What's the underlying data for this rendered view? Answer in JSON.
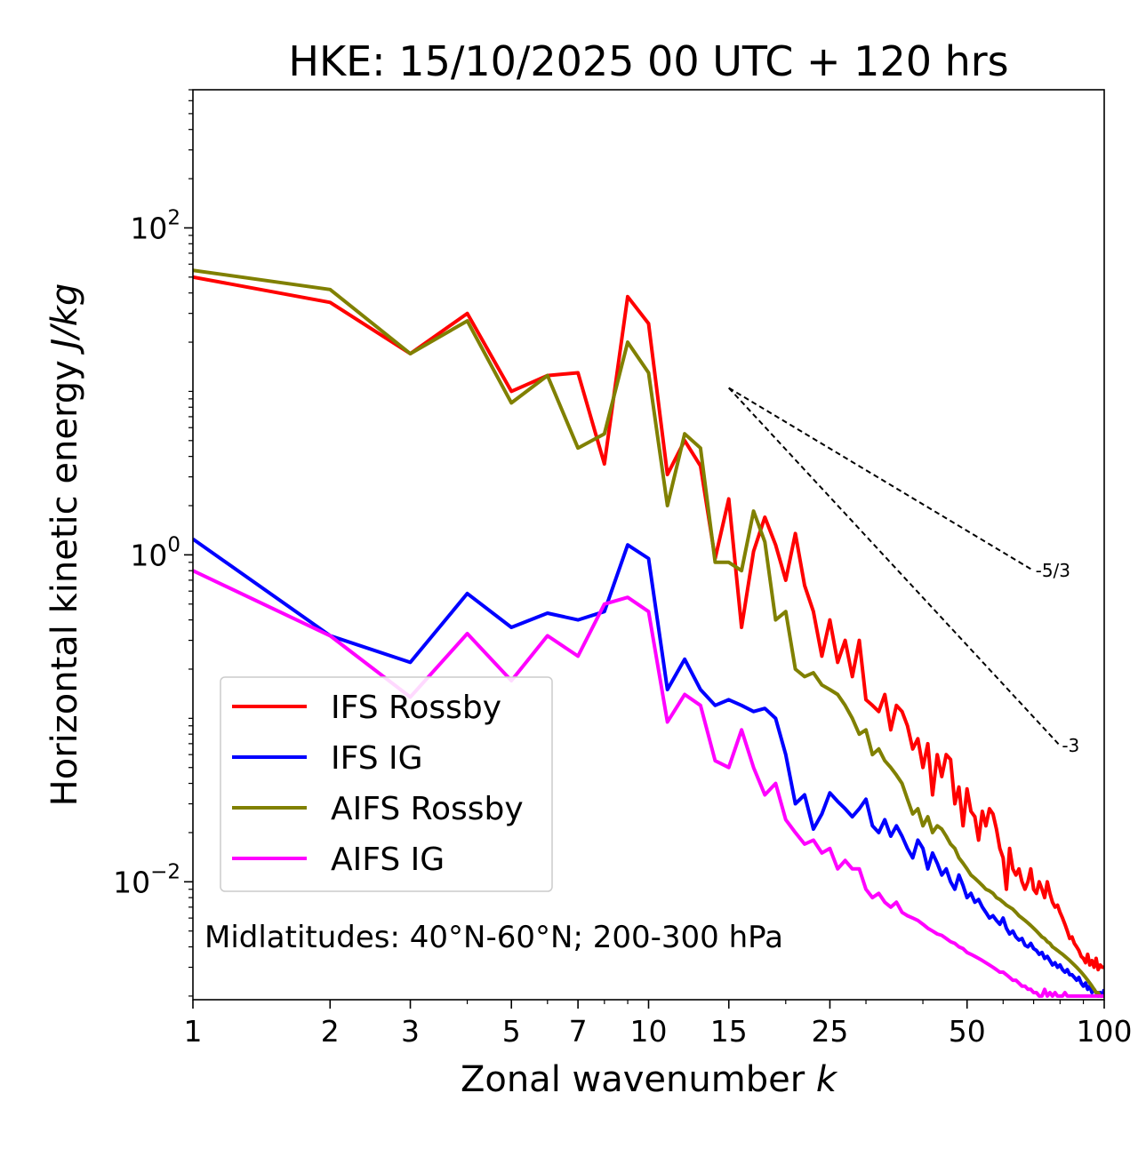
{
  "chart_data": {
    "type": "line",
    "title": "HKE: 15/10/2025 00 UTC + 120 hrs",
    "xlabel": "Zonal wavenumber",
    "xlabel_symbol": "k",
    "ylabel": "Horizontal kinetic energy",
    "ylabel_units": "J/kg",
    "xscale": "log",
    "yscale": "log",
    "xlim": [
      1,
      100
    ],
    "ylim": [
      0.0019,
      700
    ],
    "x_ticks": [
      1,
      2,
      3,
      5,
      7,
      10,
      15,
      25,
      50,
      100
    ],
    "x_tick_labels": [
      "1",
      "2",
      "3",
      "5",
      "7",
      "10",
      "15",
      "25",
      "50",
      "100"
    ],
    "y_ticks": [
      {
        "value": 100,
        "base": "10",
        "exp": "2"
      },
      {
        "value": 1,
        "base": "10",
        "exp": "0"
      },
      {
        "value": 0.01,
        "base": "10",
        "exp": "−2"
      }
    ],
    "annotation": "Midlatitudes: 40°N-60°N; 200-300 hPa",
    "legend_position": "lower-left",
    "reference_slopes": [
      {
        "label": "-5/3",
        "slope": -1.6667,
        "x0": 15,
        "y0": 10.5,
        "x1": 70,
        "y1": 0.8
      },
      {
        "label": "-3",
        "slope": -3,
        "x0": 15,
        "y0": 10.5,
        "x1": 80,
        "y1": 0.068
      }
    ],
    "series": [
      {
        "name": "IFS Rossby",
        "color": "#ff0000",
        "x": [
          1,
          2,
          3,
          4,
          5,
          6,
          7,
          8,
          9,
          10,
          11,
          12,
          13,
          14,
          15,
          16,
          17,
          18,
          19,
          20,
          21,
          22,
          23,
          24,
          25,
          26,
          27,
          28,
          29,
          30,
          31,
          32,
          33,
          34,
          35,
          36,
          37,
          38,
          39,
          40,
          41,
          42,
          43,
          44,
          45,
          46,
          47,
          48,
          49,
          50,
          51,
          52,
          53,
          54,
          55,
          56,
          57,
          58,
          59,
          60,
          61,
          62,
          63,
          64,
          65,
          66,
          67,
          68,
          69,
          70,
          71,
          72,
          73,
          74,
          75,
          76,
          77,
          78,
          79,
          80,
          81,
          82,
          83,
          84,
          85,
          86,
          87,
          88,
          89,
          90,
          91,
          92,
          93,
          94,
          95,
          96,
          97,
          98,
          99,
          100
        ],
        "y": [
          50,
          35,
          17,
          30,
          10,
          12.5,
          13,
          3.6,
          38,
          26,
          3.1,
          5,
          3.5,
          0.95,
          2.2,
          0.36,
          1.05,
          1.7,
          1.15,
          0.7,
          1.35,
          0.65,
          0.45,
          0.24,
          0.4,
          0.22,
          0.3,
          0.18,
          0.3,
          0.13,
          0.12,
          0.11,
          0.14,
          0.085,
          0.12,
          0.11,
          0.09,
          0.065,
          0.075,
          0.05,
          0.07,
          0.034,
          0.06,
          0.044,
          0.06,
          0.056,
          0.03,
          0.038,
          0.022,
          0.037,
          0.027,
          0.025,
          0.018,
          0.027,
          0.022,
          0.028,
          0.026,
          0.021,
          0.016,
          0.014,
          0.009,
          0.016,
          0.012,
          0.011,
          0.012,
          0.01,
          0.009,
          0.01,
          0.012,
          0.009,
          0.0085,
          0.01,
          0.009,
          0.008,
          0.01,
          0.0085,
          0.0075,
          0.007,
          0.0072,
          0.0065,
          0.006,
          0.0055,
          0.005,
          0.0045,
          0.0046,
          0.0042,
          0.004,
          0.0038,
          0.0035,
          0.0034,
          0.0032,
          0.0036,
          0.0031,
          0.0033,
          0.003,
          0.0034,
          0.0029,
          0.0031,
          0.003,
          0.003
        ]
      },
      {
        "name": "IFS IG",
        "color": "#0000ff",
        "x": [
          1,
          2,
          3,
          4,
          5,
          6,
          7,
          8,
          9,
          10,
          11,
          12,
          13,
          14,
          15,
          16,
          17,
          18,
          19,
          20,
          21,
          22,
          23,
          24,
          25,
          26,
          27,
          28,
          29,
          30,
          31,
          32,
          33,
          34,
          35,
          36,
          37,
          38,
          39,
          40,
          41,
          42,
          43,
          44,
          45,
          46,
          47,
          48,
          49,
          50,
          51,
          52,
          53,
          54,
          55,
          56,
          57,
          58,
          59,
          60,
          61,
          62,
          63,
          64,
          65,
          66,
          67,
          68,
          69,
          70,
          71,
          72,
          73,
          74,
          75,
          76,
          77,
          78,
          79,
          80,
          81,
          82,
          83,
          84,
          85,
          86,
          87,
          88,
          89,
          90,
          91,
          92,
          93,
          94,
          95,
          96,
          97,
          98,
          99,
          100
        ],
        "y": [
          1.25,
          0.32,
          0.22,
          0.58,
          0.36,
          0.44,
          0.4,
          0.45,
          1.15,
          0.95,
          0.15,
          0.23,
          0.15,
          0.12,
          0.13,
          0.12,
          0.11,
          0.115,
          0.1,
          0.06,
          0.03,
          0.034,
          0.021,
          0.026,
          0.035,
          0.031,
          0.028,
          0.025,
          0.028,
          0.032,
          0.022,
          0.02,
          0.024,
          0.019,
          0.022,
          0.019,
          0.016,
          0.014,
          0.018,
          0.016,
          0.012,
          0.015,
          0.013,
          0.011,
          0.012,
          0.01,
          0.009,
          0.011,
          0.0095,
          0.008,
          0.0085,
          0.0075,
          0.0078,
          0.007,
          0.0065,
          0.006,
          0.0062,
          0.0058,
          0.0055,
          0.006,
          0.0052,
          0.0048,
          0.005,
          0.0046,
          0.0044,
          0.0045,
          0.0041,
          0.004,
          0.0042,
          0.0039,
          0.0038,
          0.0036,
          0.0037,
          0.0034,
          0.0035,
          0.0033,
          0.0031,
          0.0032,
          0.003,
          0.0031,
          0.0029,
          0.0028,
          0.0029,
          0.0027,
          0.0027,
          0.0026,
          0.0025,
          0.0026,
          0.0024,
          0.0023,
          0.0024,
          0.0022,
          0.0023,
          0.0021,
          0.0022,
          0.0021,
          0.002,
          0.0021,
          0.002,
          0.0022
        ]
      },
      {
        "name": "AIFS Rossby",
        "color": "#808000",
        "x": [
          1,
          2,
          3,
          4,
          5,
          6,
          7,
          8,
          9,
          10,
          11,
          12,
          13,
          14,
          15,
          16,
          17,
          18,
          19,
          20,
          21,
          22,
          23,
          24,
          25,
          26,
          27,
          28,
          29,
          30,
          31,
          32,
          33,
          34,
          35,
          36,
          37,
          38,
          39,
          40,
          41,
          42,
          43,
          44,
          45,
          46,
          47,
          48,
          49,
          50,
          51,
          52,
          53,
          54,
          55,
          56,
          57,
          58,
          59,
          60,
          61,
          62,
          63,
          64,
          65,
          66,
          67,
          68,
          69,
          70,
          71,
          72,
          73,
          74,
          75,
          76,
          77,
          78,
          79,
          80,
          81,
          82,
          83,
          84,
          85,
          86,
          87,
          88,
          89,
          90,
          91,
          92,
          93,
          94,
          95,
          96,
          97,
          98,
          99,
          100
        ],
        "y": [
          55,
          42,
          17,
          27,
          8.5,
          12.5,
          4.5,
          5.5,
          20,
          13,
          2.0,
          5.5,
          4.5,
          0.9,
          0.9,
          0.8,
          1.85,
          1.2,
          0.4,
          0.45,
          0.2,
          0.18,
          0.19,
          0.16,
          0.15,
          0.14,
          0.12,
          0.1,
          0.08,
          0.085,
          0.06,
          0.065,
          0.055,
          0.05,
          0.045,
          0.04,
          0.032,
          0.026,
          0.028,
          0.022,
          0.025,
          0.02,
          0.022,
          0.021,
          0.019,
          0.017,
          0.016,
          0.014,
          0.013,
          0.012,
          0.011,
          0.0105,
          0.01,
          0.0095,
          0.009,
          0.0088,
          0.0085,
          0.008,
          0.0078,
          0.0075,
          0.0072,
          0.007,
          0.0068,
          0.0065,
          0.0062,
          0.006,
          0.0058,
          0.0056,
          0.0054,
          0.0052,
          0.005,
          0.0048,
          0.0046,
          0.0045,
          0.0043,
          0.0042,
          0.004,
          0.0039,
          0.0038,
          0.0037,
          0.0036,
          0.0035,
          0.0034,
          0.0033,
          0.0032,
          0.0031,
          0.003,
          0.0029,
          0.0028,
          0.0027,
          0.0026,
          0.0025,
          0.0024,
          0.0023,
          0.0022,
          0.0021,
          0.0021,
          0.002,
          0.002,
          0.002
        ]
      },
      {
        "name": "AIFS IG",
        "color": "#ff00ff",
        "x": [
          1,
          2,
          3,
          4,
          5,
          6,
          7,
          8,
          9,
          10,
          11,
          12,
          13,
          14,
          15,
          16,
          17,
          18,
          19,
          20,
          21,
          22,
          23,
          24,
          25,
          26,
          27,
          28,
          29,
          30,
          31,
          32,
          33,
          34,
          35,
          36,
          37,
          38,
          39,
          40,
          41,
          42,
          43,
          44,
          45,
          46,
          47,
          48,
          49,
          50,
          51,
          52,
          53,
          54,
          55,
          56,
          57,
          58,
          59,
          60,
          61,
          62,
          63,
          64,
          65,
          66,
          67,
          68,
          69,
          70,
          71,
          72,
          73,
          74,
          75,
          76,
          77,
          78,
          79,
          80,
          81,
          82,
          83,
          84,
          85,
          86,
          87,
          88,
          89,
          90,
          91,
          92,
          93,
          94,
          95,
          96,
          97,
          98,
          99,
          100
        ],
        "y": [
          0.8,
          0.32,
          0.135,
          0.33,
          0.17,
          0.32,
          0.24,
          0.5,
          0.55,
          0.45,
          0.095,
          0.14,
          0.12,
          0.055,
          0.05,
          0.085,
          0.05,
          0.034,
          0.04,
          0.024,
          0.02,
          0.017,
          0.018,
          0.015,
          0.016,
          0.012,
          0.0135,
          0.012,
          0.012,
          0.009,
          0.008,
          0.0085,
          0.0075,
          0.007,
          0.0075,
          0.0065,
          0.0062,
          0.006,
          0.0058,
          0.0055,
          0.0052,
          0.005,
          0.0048,
          0.0047,
          0.0045,
          0.0043,
          0.0042,
          0.004,
          0.0039,
          0.0037,
          0.0036,
          0.0035,
          0.0034,
          0.0033,
          0.0032,
          0.0031,
          0.003,
          0.0029,
          0.0028,
          0.0028,
          0.0027,
          0.0026,
          0.0025,
          0.0025,
          0.0024,
          0.0023,
          0.0023,
          0.0022,
          0.0022,
          0.0021,
          0.0021,
          0.002,
          0.002,
          0.0022,
          0.002,
          0.0021,
          0.002,
          0.0021,
          0.002,
          0.002,
          0.002,
          0.0021,
          0.002,
          0.002,
          0.002,
          0.002,
          0.002,
          0.002,
          0.002,
          0.002,
          0.002,
          0.002,
          0.002,
          0.002,
          0.002,
          0.002,
          0.002,
          0.002,
          0.002,
          0.002
        ]
      }
    ]
  }
}
